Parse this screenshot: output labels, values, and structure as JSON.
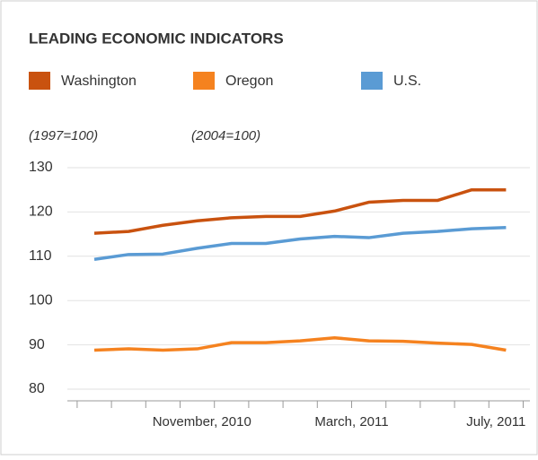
{
  "chart_data": {
    "type": "line",
    "title": "LEADING ECONOMIC INDICATORS",
    "annotations": [
      "(1997=100)",
      "(2004=100)"
    ],
    "categories": [
      null,
      null,
      null,
      null,
      "November, 2010",
      null,
      null,
      null,
      "March, 2011",
      null,
      null,
      null,
      "July, 2011"
    ],
    "series": [
      {
        "name": "Washington",
        "color": "#c9520f",
        "values": [
          115.2,
          115.6,
          117,
          118,
          118.7,
          119,
          119,
          120.2,
          122.2,
          122.6,
          122.6,
          125,
          125
        ]
      },
      {
        "name": "Oregon",
        "color": "#f5821f",
        "values": [
          88.8,
          89.1,
          88.8,
          89.1,
          90.5,
          90.5,
          90.9,
          91.6,
          90.9,
          90.8,
          90.4,
          90.1,
          88.8
        ]
      },
      {
        "name": "U.S.",
        "color": "#5a9bd4",
        "values": [
          109.3,
          110.4,
          110.5,
          111.8,
          112.9,
          112.9,
          113.9,
          114.5,
          114.2,
          115.2,
          115.6,
          116.2,
          116.5
        ]
      }
    ],
    "ylim": [
      80,
      130
    ],
    "yticks": [
      80,
      90,
      100,
      110,
      120,
      130
    ],
    "grid": true
  }
}
